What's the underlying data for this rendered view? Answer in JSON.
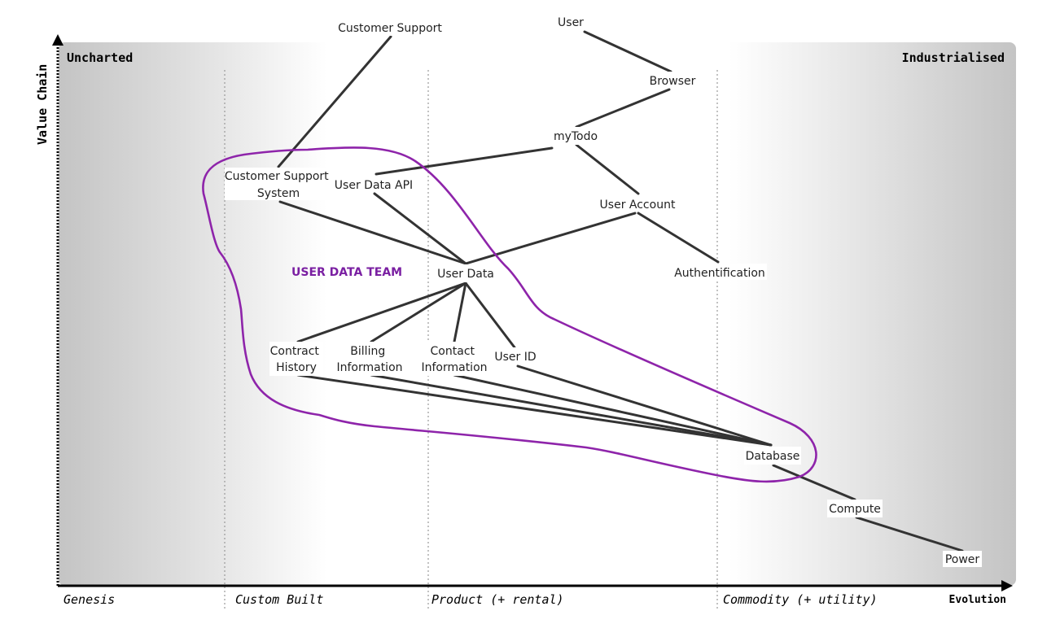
{
  "map": {
    "corner_labels": {
      "left": "Uncharted",
      "right": "Industrialised"
    },
    "y_axis_label": "Value Chain",
    "x_axis_label": "Evolution",
    "stages": [
      "Genesis",
      "Custom Built",
      "Product (+ rental)",
      "Commodity (+ utility)"
    ],
    "team": {
      "label": "USER DATA TEAM",
      "color": "#7a1fa2"
    },
    "colors": {
      "link": "#333333",
      "axis": "#000000",
      "team_outline": "#8e24aa"
    }
  },
  "components": {
    "user": "User",
    "customer_support": "Customer Support",
    "browser": "Browser",
    "mytodo": "myTodo",
    "customer_support_system_1": "Customer Support",
    "customer_support_system_2": "System",
    "user_data_api": "User Data API",
    "user_account": "User Account",
    "authentification": "Authentification",
    "user_data": "User Data",
    "contract_history_1": "Contract",
    "contract_history_2": "History",
    "billing_information_1": "Billing",
    "billing_information_2": "Information",
    "contact_information_1": "Contact",
    "contact_information_2": "Information",
    "user_id": "User ID",
    "database": "Database",
    "compute": "Compute",
    "power": "Power"
  }
}
